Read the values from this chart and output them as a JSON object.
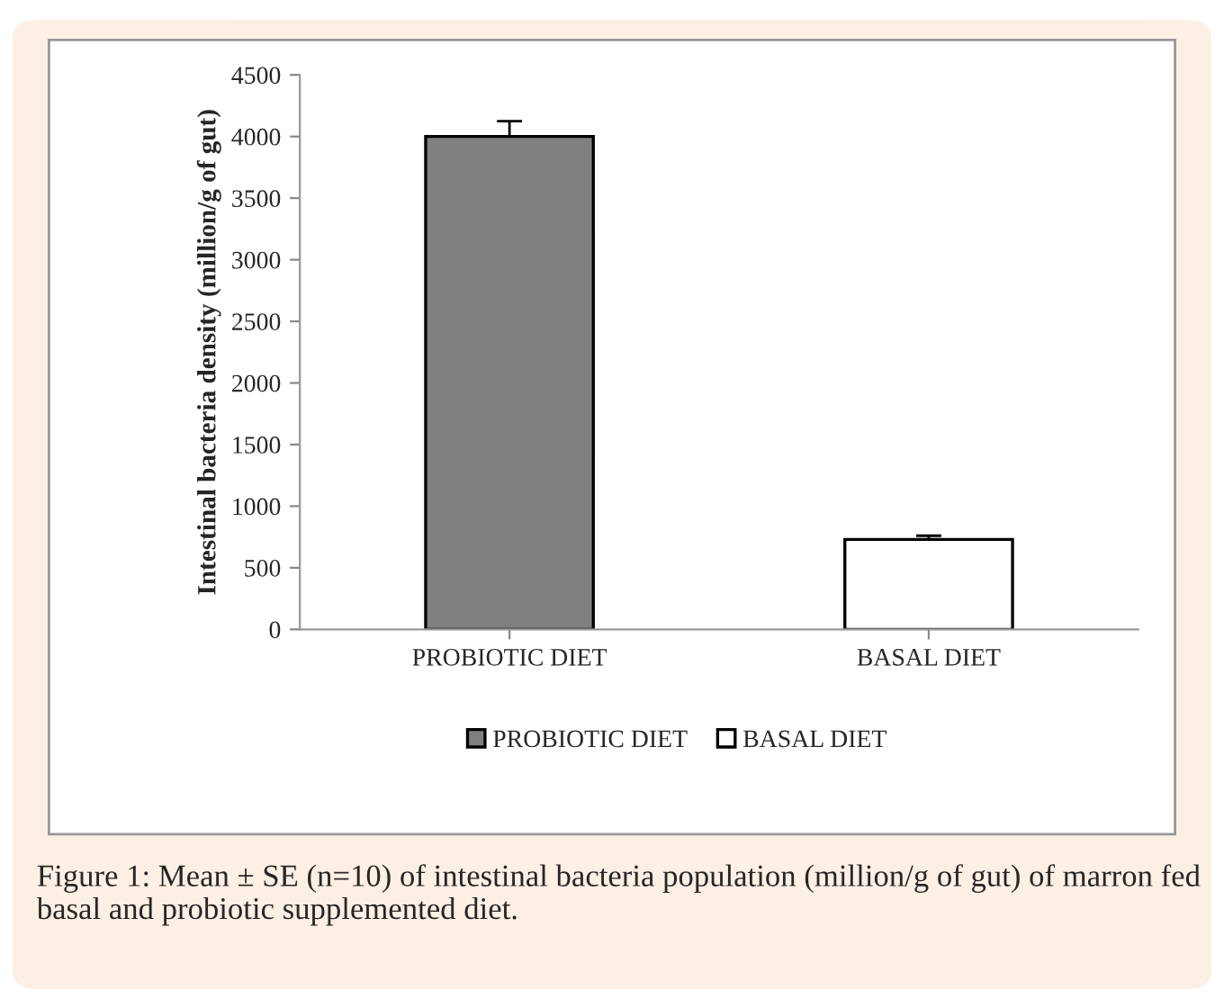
{
  "chart_data": {
    "type": "bar",
    "ylabel": "Intestinal bacteria density (million/g of gut)",
    "categories": [
      "PROBIOTIC DIET",
      "BASAL DIET"
    ],
    "series": [
      {
        "name": "PROBIOTIC DIET",
        "color": "#808080",
        "values": [
          4000,
          null
        ],
        "errors": [
          125,
          null
        ]
      },
      {
        "name": "BASAL DIET",
        "color": "#ffffff",
        "values": [
          null,
          730
        ],
        "errors": [
          null,
          30
        ]
      }
    ],
    "ylim": [
      0,
      4500
    ],
    "yticks": [
      0,
      500,
      1000,
      1500,
      2000,
      2500,
      3000,
      3500,
      4000,
      4500
    ],
    "grid": false,
    "legend": "bottom",
    "annotations": [
      "Figure 1: Mean ± SE (n=10) of intestinal bacteria population (million/g of gut) of marron fed basal and probiotic supplemented diet."
    ]
  }
}
